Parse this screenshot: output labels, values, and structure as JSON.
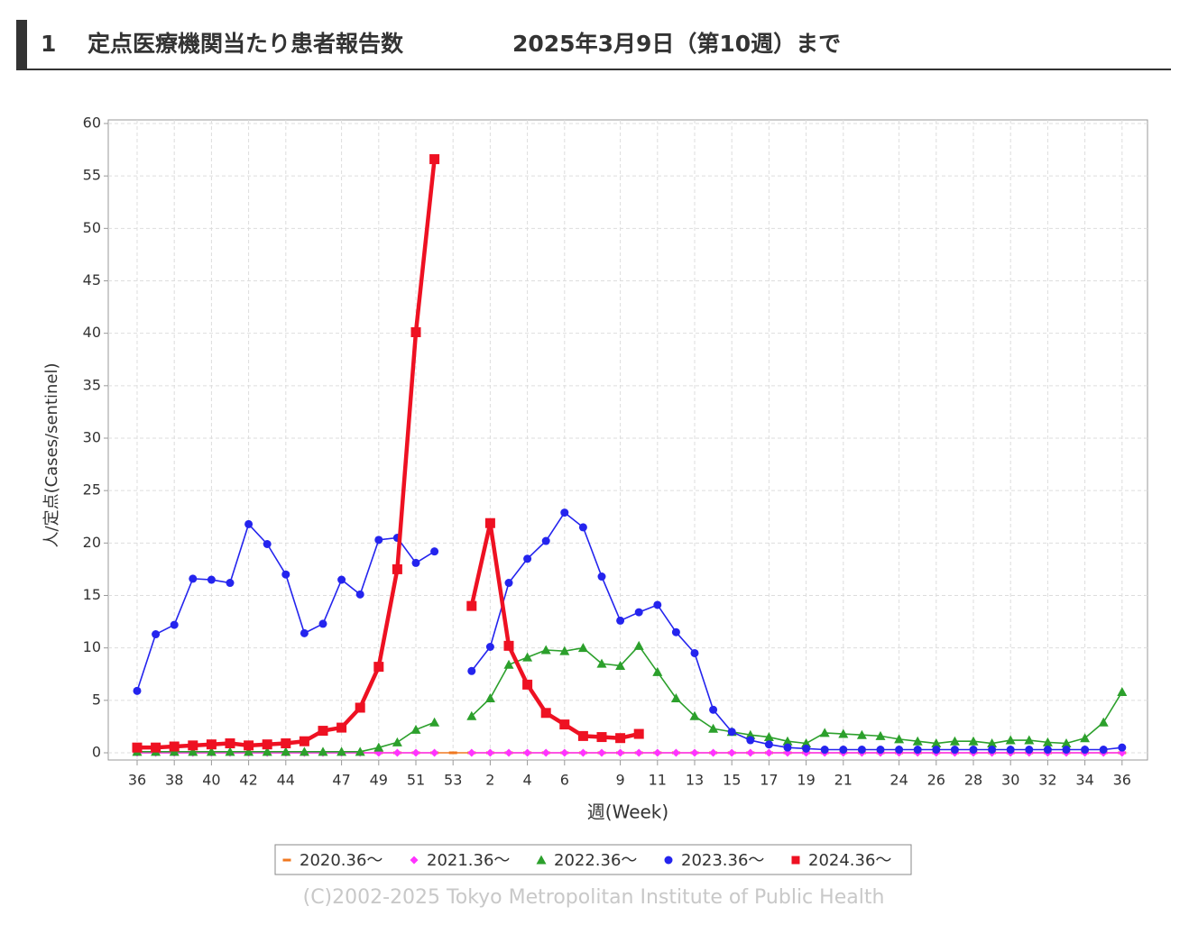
{
  "header": {
    "number": "1",
    "title": "定点医療機関当たり患者報告数",
    "date": "2025年3月9日（第10週）まで"
  },
  "chart_data": {
    "type": "line",
    "y_label": "人/定点(Cases/sentinel)",
    "x_label": "週(Week)",
    "footer": "(C)2002-2025 Tokyo Metropolitan Institute of Public Health",
    "categories": [
      "36",
      null,
      "38",
      null,
      "40",
      null,
      "42",
      null,
      "44",
      null,
      null,
      "47",
      null,
      "49",
      null,
      "51",
      null,
      "53",
      null,
      "2",
      null,
      "4",
      null,
      "6",
      null,
      null,
      "9",
      null,
      "11",
      null,
      "13",
      null,
      "15",
      null,
      "17",
      null,
      "19",
      null,
      "21",
      null,
      null,
      "24",
      null,
      "26",
      null,
      "28",
      null,
      "30",
      null,
      "32",
      null,
      "34",
      null,
      "36"
    ],
    "ylim": [
      0,
      60
    ],
    "yticks": [
      0,
      5,
      10,
      15,
      20,
      25,
      30,
      35,
      40,
      45,
      50,
      55,
      60
    ],
    "grid": true,
    "legend": "bottom",
    "series": [
      {
        "name": "2020.36～",
        "color": "#f07820",
        "marker": "dash",
        "values": [
          0,
          0,
          0,
          0,
          0,
          0,
          0,
          0,
          0,
          0,
          0,
          0,
          0,
          0,
          0,
          0,
          0,
          0,
          0,
          0,
          0,
          0,
          0,
          0,
          0,
          0,
          0,
          0,
          0,
          0,
          0,
          0,
          0,
          0,
          0,
          0,
          0,
          0,
          0,
          0,
          0,
          0,
          0,
          0,
          0,
          0,
          0,
          0,
          0,
          0,
          0,
          0,
          0,
          0
        ]
      },
      {
        "name": "2021.36～",
        "color": "#ff33ff",
        "marker": "diamond",
        "values": [
          0,
          0,
          0,
          0,
          0,
          0,
          0,
          0,
          0,
          0,
          0,
          0,
          0,
          0,
          0,
          0,
          0,
          null,
          0,
          0,
          0,
          0,
          0,
          0,
          0,
          0,
          0,
          0,
          0,
          0,
          0,
          0,
          0,
          0,
          0,
          0,
          0,
          0,
          0,
          0,
          0,
          0,
          0,
          0,
          0,
          0,
          0,
          0,
          0,
          0,
          0,
          0,
          0,
          0
        ]
      },
      {
        "name": "2022.36～",
        "color": "#2ca02c",
        "marker": "triangle",
        "values": [
          0.1,
          0.1,
          0.1,
          0.1,
          0.1,
          0.1,
          0.1,
          0.1,
          0.1,
          0.1,
          0.1,
          0.1,
          0.1,
          0.5,
          1.0,
          2.2,
          2.9,
          null,
          3.5,
          5.2,
          8.4,
          9.1,
          9.8,
          9.7,
          10.0,
          8.5,
          8.3,
          10.2,
          7.7,
          5.2,
          3.5,
          2.3,
          2.0,
          1.7,
          1.5,
          1.1,
          0.9,
          1.9,
          1.8,
          1.7,
          1.6,
          1.3,
          1.1,
          0.9,
          1.1,
          1.1,
          0.9,
          1.2,
          1.2,
          1.0,
          0.9,
          1.4,
          2.9,
          5.8
        ]
      },
      {
        "name": "2023.36～",
        "color": "#2424ee",
        "marker": "circle",
        "values": [
          5.9,
          11.3,
          12.2,
          16.6,
          16.5,
          16.2,
          21.8,
          19.9,
          17.0,
          11.4,
          12.3,
          16.5,
          15.1,
          20.3,
          20.5,
          18.1,
          19.2,
          null,
          7.8,
          10.1,
          16.2,
          18.5,
          20.2,
          22.9,
          21.5,
          16.8,
          12.6,
          13.4,
          14.1,
          11.5,
          9.5,
          4.1,
          2.0,
          1.2,
          0.8,
          0.5,
          0.4,
          0.3,
          0.3,
          0.3,
          0.3,
          0.3,
          0.3,
          0.3,
          0.3,
          0.3,
          0.3,
          0.3,
          0.3,
          0.3,
          0.3,
          0.3,
          0.3,
          0.5
        ]
      },
      {
        "name": "2024.36～",
        "color": "#ee1122",
        "marker": "square",
        "values": [
          0.5,
          0.5,
          0.6,
          0.7,
          0.8,
          0.9,
          0.7,
          0.8,
          0.9,
          1.1,
          2.1,
          2.4,
          4.3,
          8.2,
          17.5,
          40.1,
          56.6,
          null,
          14.0,
          21.9,
          10.2,
          6.5,
          3.8,
          2.7,
          1.6,
          1.5,
          1.4,
          1.8,
          null,
          null,
          null,
          null,
          null,
          null,
          null,
          null,
          null,
          null,
          null,
          null,
          null,
          null,
          null,
          null,
          null,
          null,
          null,
          null,
          null,
          null,
          null,
          null,
          null,
          null
        ]
      }
    ]
  }
}
